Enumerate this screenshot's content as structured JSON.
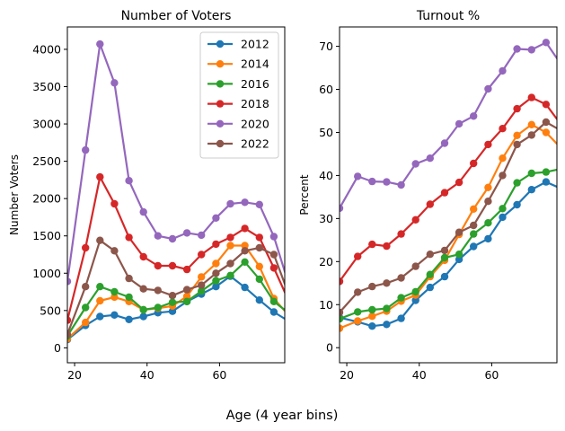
{
  "figure": {
    "suptitle": "Age (4 year bins)"
  },
  "colors": {
    "2012": "#1f77b4",
    "2014": "#ff7f0e",
    "2016": "#2ca02c",
    "2018": "#d62728",
    "2020": "#9467bd",
    "2022": "#8c564b"
  },
  "chart_data": [
    {
      "type": "line",
      "title": "Number of Voters",
      "xlabel": "",
      "ylabel": "Number Voters",
      "xlim": [
        18,
        78
      ],
      "ylim": [
        -200,
        4300
      ],
      "xticks": [
        20,
        40,
        60
      ],
      "yticks": [
        0,
        500,
        1000,
        1500,
        2000,
        2500,
        3000,
        3500,
        4000
      ],
      "legend": "top-right",
      "x": [
        18,
        23,
        27,
        31,
        35,
        39,
        43,
        47,
        51,
        55,
        59,
        63,
        67,
        71,
        75,
        79
      ],
      "series": [
        {
          "name": "2012",
          "values": [
            110,
            300,
            420,
            440,
            380,
            420,
            470,
            490,
            620,
            720,
            820,
            960,
            810,
            640,
            480,
            360
          ]
        },
        {
          "name": "2014",
          "values": [
            120,
            340,
            630,
            680,
            620,
            510,
            530,
            560,
            690,
            950,
            1130,
            1370,
            1370,
            1090,
            660,
            440
          ]
        },
        {
          "name": "2016",
          "values": [
            160,
            540,
            820,
            750,
            680,
            510,
            540,
            610,
            620,
            760,
            900,
            970,
            1150,
            920,
            620,
            470
          ]
        },
        {
          "name": "2018",
          "values": [
            370,
            1340,
            2290,
            1930,
            1480,
            1220,
            1100,
            1100,
            1050,
            1250,
            1390,
            1480,
            1600,
            1480,
            1070,
            640
          ]
        },
        {
          "name": "2020",
          "values": [
            890,
            2650,
            4070,
            3550,
            2240,
            1820,
            1500,
            1460,
            1540,
            1510,
            1740,
            1930,
            1950,
            1920,
            1490,
            870
          ]
        },
        {
          "name": "2022",
          "values": [
            180,
            820,
            1440,
            1300,
            930,
            790,
            770,
            700,
            780,
            840,
            1000,
            1130,
            1300,
            1340,
            1250,
            730
          ]
        }
      ]
    },
    {
      "type": "line",
      "title": "Turnout %",
      "xlabel": "",
      "ylabel": "Percent",
      "xlim": [
        18,
        78
      ],
      "ylim": [
        -3.5,
        74.5
      ],
      "xticks": [
        20,
        40,
        60
      ],
      "yticks": [
        0,
        10,
        20,
        30,
        40,
        50,
        60,
        70
      ],
      "x": [
        18,
        23,
        27,
        31,
        35,
        39,
        43,
        47,
        51,
        55,
        59,
        63,
        67,
        71,
        75,
        79
      ],
      "series": [
        {
          "name": "2012",
          "values": [
            7.0,
            6.0,
            5.0,
            5.4,
            6.8,
            11.0,
            14.0,
            16.5,
            20.5,
            23.5,
            25.3,
            30.3,
            33.2,
            36.7,
            38.5,
            37.0
          ]
        },
        {
          "name": "2014",
          "values": [
            4.5,
            6.2,
            7.3,
            8.5,
            10.8,
            12.2,
            16.5,
            20.3,
            26.3,
            32.2,
            37.2,
            44.0,
            49.3,
            51.8,
            50.0,
            46.5
          ]
        },
        {
          "name": "2016",
          "values": [
            6.7,
            8.3,
            8.8,
            9.1,
            11.6,
            13.0,
            17.0,
            20.9,
            21.7,
            26.4,
            29.0,
            32.3,
            38.3,
            40.5,
            40.8,
            41.5
          ]
        },
        {
          "name": "2018",
          "values": [
            15.4,
            21.2,
            24.0,
            23.6,
            26.4,
            29.7,
            33.3,
            36.0,
            38.4,
            42.8,
            47.2,
            50.9,
            55.5,
            58.1,
            56.5,
            52.0
          ]
        },
        {
          "name": "2020",
          "values": [
            32.4,
            39.8,
            38.6,
            38.5,
            37.8,
            42.7,
            44.0,
            47.5,
            52.0,
            53.8,
            60.1,
            64.3,
            69.4,
            69.2,
            70.9,
            66.0
          ]
        },
        {
          "name": "2022",
          "values": [
            8.2,
            12.9,
            14.2,
            15.0,
            16.2,
            18.9,
            21.7,
            22.6,
            26.8,
            28.4,
            34.0,
            40.0,
            47.2,
            49.4,
            52.4,
            50.5
          ]
        }
      ]
    }
  ]
}
